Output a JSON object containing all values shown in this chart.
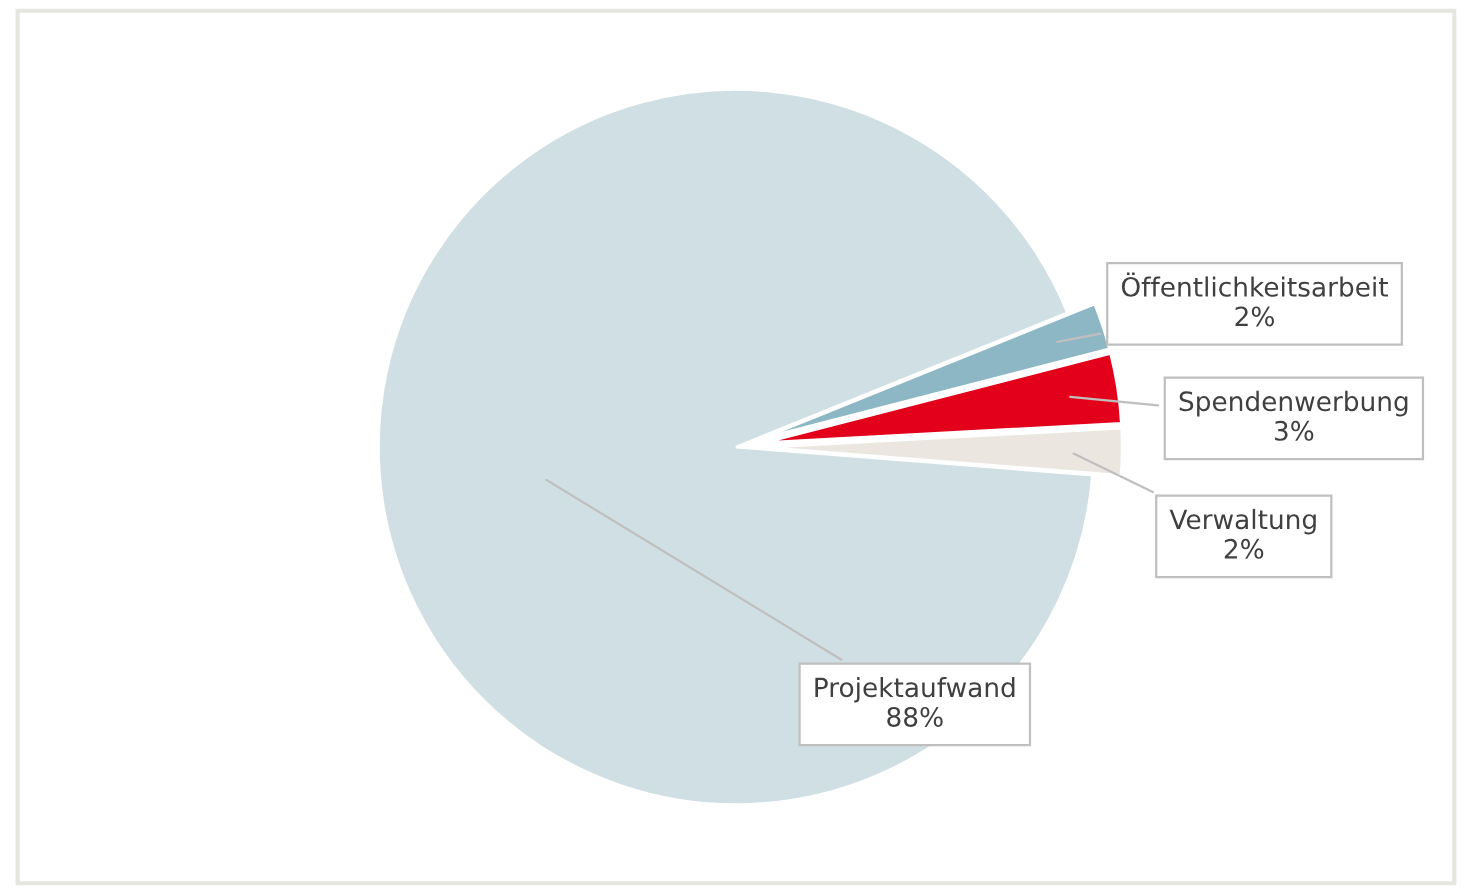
{
  "chart_data": {
    "type": "pie",
    "categories": [
      "Projektaufwand",
      "Öffentlichkeitsarbeit",
      "Spendenwerbung",
      "Verwaltung"
    ],
    "values": [
      88,
      2,
      3,
      2
    ],
    "colors": [
      "#cfdfe3",
      "#8db7c4",
      "#e2001a",
      "#ebe6e0"
    ],
    "value_labels": [
      "88%",
      "2%",
      "3%",
      "2%"
    ]
  }
}
